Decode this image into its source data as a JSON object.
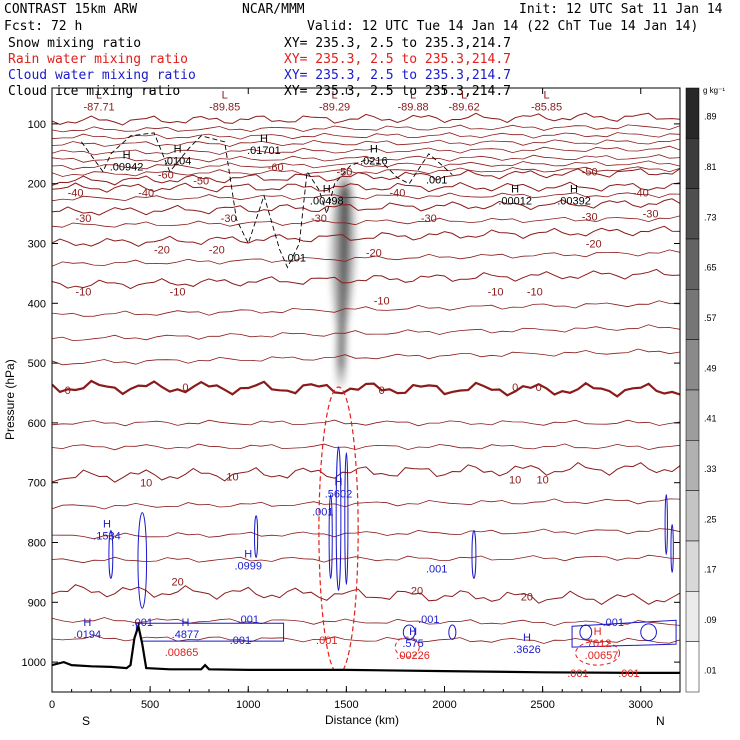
{
  "header": {
    "left": [
      {
        "text": "CONTRAST 15km ARW",
        "color": "#000000"
      },
      {
        "text": "Fcst:   72 h",
        "color": "#000000"
      }
    ],
    "center": "NCAR/MMM",
    "init": "Init: 12 UTC Sat 11 Jan 14",
    "valid": "Valid: 12 UTC Tue 14 Jan 14 (22 ChT Tue 14 Jan 14)",
    "fields": [
      {
        "name": "Snow mixing ratio",
        "xy": "XY= 235.3,  2.5 to 235.3,214.7",
        "color": "#000000"
      },
      {
        "name": "Rain water mixing ratio",
        "xy": "XY= 235.3,  2.5 to 235.3,214.7",
        "color": "#e0201c"
      },
      {
        "name": "Cloud water mixing ratio",
        "xy": "XY= 235.3,  2.5 to 235.3,214.7",
        "color": "#1a1acc"
      },
      {
        "name": "Cloud ice mixing ratio",
        "xy": "XY= 235.3,  2.5 to 235.3,214.7",
        "color": "#000000"
      }
    ]
  },
  "colorbar": {
    "unit": "g kg⁻¹",
    "labels": [
      ".89",
      ".81",
      ".73",
      ".65",
      ".57",
      ".49",
      ".41",
      ".33",
      ".25",
      ".17",
      ".09",
      ".01"
    ]
  },
  "chart_data": {
    "type": "contour-cross-section",
    "xlabel": "Distance (km)",
    "ylabel": "Pressure (hPa)",
    "xlim": [
      0,
      3200
    ],
    "ylim": [
      1050,
      40
    ],
    "xticks": [
      0,
      500,
      1000,
      1500,
      2000,
      2500,
      3000
    ],
    "yticks": [
      100,
      200,
      300,
      400,
      500,
      600,
      700,
      800,
      900,
      1000
    ],
    "x_end_labels": {
      "left": "S",
      "right": "N"
    },
    "temperature_contours": [
      {
        "value": -80,
        "label": "-80",
        "p_left": 95,
        "p_right": 88
      },
      {
        "value": -50,
        "label": "-50",
        "p_left": 196,
        "p_right": 180
      },
      {
        "value": -40,
        "label": "-40",
        "p_left": 207,
        "p_right": 205
      },
      {
        "value": -30,
        "label": "-30",
        "p_left": 247,
        "p_right": 232
      },
      {
        "value": -20,
        "label": "-20",
        "p_left": 300,
        "p_right": 278
      },
      {
        "value": -10,
        "label": "-10",
        "p_left": 370,
        "p_right": 350
      },
      {
        "value": 0,
        "label": "0",
        "p_left": 540,
        "p_right": 545
      },
      {
        "value": 10,
        "label": "10",
        "p_left": 690,
        "p_right": 675
      },
      {
        "value": 20,
        "label": "20",
        "p_left": 880,
        "p_right": 895
      }
    ],
    "temperature_labels": [
      {
        "x": 1490,
        "p": 180,
        "text": "-50"
      },
      {
        "x": 580,
        "p": 185,
        "text": "-60"
      },
      {
        "x": 1140,
        "p": 172,
        "text": "-60"
      },
      {
        "x": 760,
        "p": 195,
        "text": "-50"
      },
      {
        "x": 120,
        "p": 215,
        "text": "-40"
      },
      {
        "x": 480,
        "p": 215,
        "text": "-40"
      },
      {
        "x": 1760,
        "p": 215,
        "text": "-40"
      },
      {
        "x": 3000,
        "p": 215,
        "text": "-40"
      },
      {
        "x": 2740,
        "p": 180,
        "text": "-50"
      },
      {
        "x": 160,
        "p": 257,
        "text": "-30"
      },
      {
        "x": 900,
        "p": 257,
        "text": "-30"
      },
      {
        "x": 1360,
        "p": 257,
        "text": "-30"
      },
      {
        "x": 1920,
        "p": 257,
        "text": "-30"
      },
      {
        "x": 2740,
        "p": 255,
        "text": "-30"
      },
      {
        "x": 3050,
        "p": 250,
        "text": "-30"
      },
      {
        "x": 560,
        "p": 310,
        "text": "-20"
      },
      {
        "x": 840,
        "p": 310,
        "text": "-20"
      },
      {
        "x": 1640,
        "p": 315,
        "text": "-20"
      },
      {
        "x": 2760,
        "p": 300,
        "text": "-20"
      },
      {
        "x": 160,
        "p": 380,
        "text": "-10"
      },
      {
        "x": 640,
        "p": 380,
        "text": "-10"
      },
      {
        "x": 1680,
        "p": 395,
        "text": "-10"
      },
      {
        "x": 2260,
        "p": 380,
        "text": "-10"
      },
      {
        "x": 2460,
        "p": 380,
        "text": "-10"
      },
      {
        "x": 80,
        "p": 545,
        "text": "0"
      },
      {
        "x": 680,
        "p": 540,
        "text": "0"
      },
      {
        "x": 1680,
        "p": 545,
        "text": "0"
      },
      {
        "x": 2360,
        "p": 540,
        "text": "0"
      },
      {
        "x": 2480,
        "p": 540,
        "text": "0"
      },
      {
        "x": 480,
        "p": 700,
        "text": "10"
      },
      {
        "x": 920,
        "p": 690,
        "text": "10"
      },
      {
        "x": 2360,
        "p": 695,
        "text": "10"
      },
      {
        "x": 2500,
        "p": 695,
        "text": "10"
      },
      {
        "x": 640,
        "p": 865,
        "text": "20"
      },
      {
        "x": 1860,
        "p": 880,
        "text": "20"
      },
      {
        "x": 2420,
        "p": 890,
        "text": "20"
      }
    ],
    "extrema_labels": [
      {
        "x": 240,
        "p": 68,
        "letter": "L",
        "value": "-87.71",
        "color": "#8b1a1a"
      },
      {
        "x": 880,
        "p": 68,
        "letter": "L",
        "value": "-89.85",
        "color": "#8b1a1a"
      },
      {
        "x": 1440,
        "p": 68,
        "letter": "L",
        "value": "-89.29",
        "color": "#8b1a1a"
      },
      {
        "x": 1840,
        "p": 68,
        "letter": "L",
        "value": "-89.88",
        "color": "#8b1a1a"
      },
      {
        "x": 2100,
        "p": 68,
        "letter": "L",
        "value": "-89.62",
        "color": "#8b1a1a"
      },
      {
        "x": 2520,
        "p": 68,
        "letter": "L",
        "value": "-85.85",
        "color": "#8b1a1a"
      },
      {
        "x": 380,
        "p": 168,
        "letter": "H",
        "value": ".00942",
        "color": "#000000"
      },
      {
        "x": 640,
        "p": 158,
        "letter": "H",
        "value": ".0104",
        "color": "#000000"
      },
      {
        "x": 1080,
        "p": 140,
        "letter": "H",
        "value": ".01701",
        "color": "#000000"
      },
      {
        "x": 1640,
        "p": 158,
        "letter": "H",
        "value": ".0216",
        "color": "#000000"
      },
      {
        "x": 1400,
        "p": 225,
        "letter": "H",
        "value": ".00498",
        "color": "#000000"
      },
      {
        "x": 2360,
        "p": 225,
        "letter": "H",
        "value": ".00012",
        "color": "#000000"
      },
      {
        "x": 2660,
        "p": 225,
        "letter": "H",
        "value": ".00392",
        "color": "#000000"
      },
      {
        "x": 1240,
        "p": 320,
        "letter": "",
        "value": ".001",
        "color": "#000000"
      },
      {
        "x": 1960,
        "p": 190,
        "letter": "",
        "value": ".001",
        "color": "#000000"
      },
      {
        "x": 280,
        "p": 785,
        "letter": "H",
        "value": ".1534",
        "color": "#1a1acc"
      },
      {
        "x": 1000,
        "p": 835,
        "letter": "H",
        "value": ".0999",
        "color": "#1a1acc"
      },
      {
        "x": 1460,
        "p": 715,
        "letter": "H",
        "value": ".5602",
        "color": "#1a1acc"
      },
      {
        "x": 1380,
        "p": 745,
        "letter": "",
        "value": ".001",
        "color": "#1a1acc"
      },
      {
        "x": 1960,
        "p": 840,
        "letter": "",
        "value": ".001",
        "color": "#1a1acc"
      },
      {
        "x": 180,
        "p": 950,
        "letter": "H",
        "value": ".0194",
        "color": "#1a1acc"
      },
      {
        "x": 460,
        "p": 930,
        "letter": "",
        "value": ".001",
        "color": "#1a1acc"
      },
      {
        "x": 680,
        "p": 950,
        "letter": "H",
        "value": ".4877",
        "color": "#1a1acc"
      },
      {
        "x": 1000,
        "p": 925,
        "letter": "",
        "value": ".001",
        "color": "#1a1acc"
      },
      {
        "x": 960,
        "p": 960,
        "letter": "",
        "value": ".001",
        "color": "#1a1acc"
      },
      {
        "x": 1840,
        "p": 965,
        "letter": "H",
        "value": ".575",
        "color": "#1a1acc"
      },
      {
        "x": 1920,
        "p": 925,
        "letter": "",
        "value": ".001",
        "color": "#1a1acc"
      },
      {
        "x": 2420,
        "p": 975,
        "letter": "H",
        "value": ".3626",
        "color": "#1a1acc"
      },
      {
        "x": 2860,
        "p": 930,
        "letter": "",
        "value": ".001",
        "color": "#1a1acc"
      },
      {
        "x": 660,
        "p": 980,
        "letter": "",
        "value": ".00865",
        "color": "#e0201c"
      },
      {
        "x": 1400,
        "p": 960,
        "letter": "",
        "value": ".001",
        "color": "#e0201c"
      },
      {
        "x": 1840,
        "p": 985,
        "letter": "",
        "value": ".00226",
        "color": "#e0201c"
      },
      {
        "x": 2780,
        "p": 965,
        "letter": "H",
        "value": ".7012",
        "color": "#e0201c"
      },
      {
        "x": 2800,
        "p": 985,
        "letter": "",
        "value": ".00657",
        "color": "#e0201c"
      },
      {
        "x": 2680,
        "p": 1015,
        "letter": "",
        "value": ".001",
        "color": "#e0201c"
      },
      {
        "x": 2940,
        "p": 1015,
        "letter": "",
        "value": ".001",
        "color": "#e0201c"
      }
    ],
    "snow_plume": {
      "x_center_top": 1490,
      "x_center_bottom": 1470,
      "p_top": 170,
      "p_bottom": 540,
      "max_value": 0.89
    },
    "terrain": [
      [
        0,
        1005
      ],
      [
        60,
        1000
      ],
      [
        100,
        1005
      ],
      [
        200,
        1007
      ],
      [
        300,
        1008
      ],
      [
        380,
        1010
      ],
      [
        400,
        1005
      ],
      [
        420,
        960
      ],
      [
        440,
        940
      ],
      [
        460,
        970
      ],
      [
        480,
        1010
      ],
      [
        600,
        1012
      ],
      [
        760,
        1012
      ],
      [
        780,
        1005
      ],
      [
        800,
        1012
      ],
      [
        1000,
        1013
      ],
      [
        1500,
        1013
      ],
      [
        2000,
        1015
      ],
      [
        2500,
        1017
      ],
      [
        3000,
        1018
      ],
      [
        3200,
        1018
      ]
    ]
  }
}
